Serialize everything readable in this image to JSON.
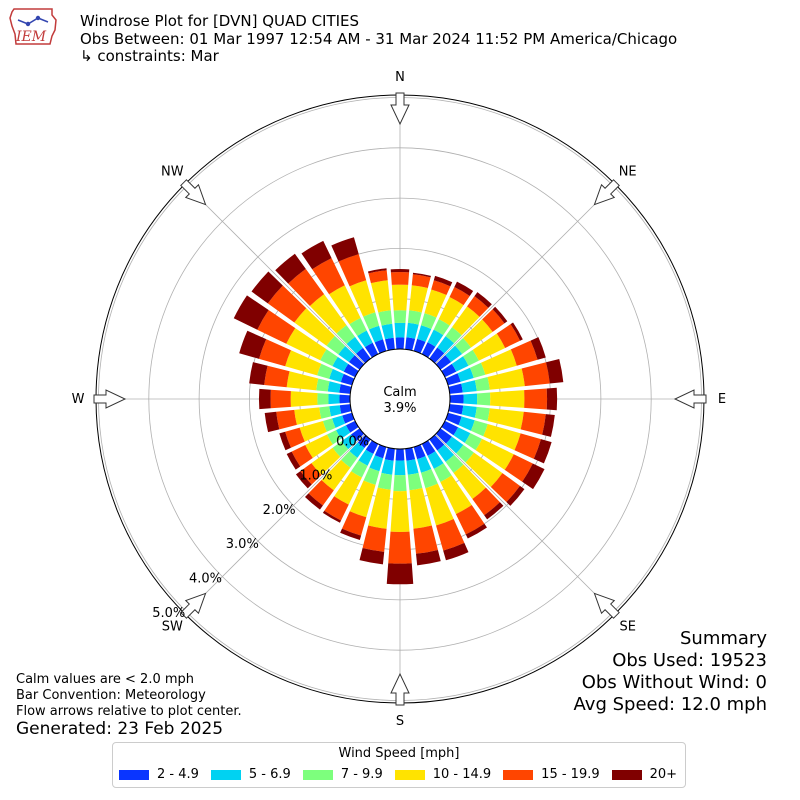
{
  "header": {
    "title": "Windrose Plot for [DVN] QUAD CITIES",
    "subtitle": "Obs Between: 01 Mar 1997 12:54 AM - 31 Mar 2024 11:52 PM America/Chicago",
    "constraints": "↳ constraints: Mar"
  },
  "logo": {
    "icon": "iem-iowa-logo-icon",
    "text": "IEM"
  },
  "notes": {
    "calm": "Calm values are < 2.0 mph",
    "convention": "Bar Convention: Meteorology",
    "arrows": "Flow arrows relative to plot center.",
    "generated": "Generated: 23 Feb 2025"
  },
  "summary": {
    "title": "Summary",
    "obs_used": "Obs Used: 19523",
    "obs_without_wind": "Obs Without Wind: 0",
    "avg_speed": "Avg Speed: 12.0 mph"
  },
  "chart_data": {
    "type": "windrose",
    "calm_label": "Calm",
    "calm_value": "3.9%",
    "directions": [
      "N",
      "NE",
      "E",
      "SE",
      "S",
      "SW",
      "W",
      "NW"
    ],
    "radial_ticks": [
      "0.0%",
      "1.0%",
      "2.0%",
      "3.0%",
      "4.0%",
      "5.0%"
    ],
    "radial_tick_values": [
      0,
      1,
      2,
      3,
      4,
      5
    ],
    "legend_title": "Wind Speed [mph]",
    "speed_bins": [
      "2 - 4.9",
      "5 - 6.9",
      "7 - 9.9",
      "10 - 14.9",
      "15 - 19.9",
      "20+"
    ],
    "colors": [
      "#0a35ff",
      "#00d2f2",
      "#7dff7d",
      "#ffe300",
      "#ff4500",
      "#800000"
    ],
    "sector_width_deg": 10,
    "sectors": [
      {
        "dir": 0,
        "cum": [
          0.23,
          0.52,
          0.77,
          1.28,
          1.53,
          1.59
        ]
      },
      {
        "dir": 10,
        "cum": [
          0.24,
          0.53,
          0.78,
          1.28,
          1.5,
          1.53
        ]
      },
      {
        "dir": 20,
        "cum": [
          0.25,
          0.53,
          0.78,
          1.27,
          1.46,
          1.55
        ]
      },
      {
        "dir": 30,
        "cum": [
          0.26,
          0.54,
          0.77,
          1.26,
          1.48,
          1.6
        ]
      },
      {
        "dir": 40,
        "cum": [
          0.27,
          0.55,
          0.77,
          1.28,
          1.53,
          1.63
        ]
      },
      {
        "dir": 50,
        "cum": [
          0.26,
          0.53,
          0.75,
          1.28,
          1.57,
          1.64
        ]
      },
      {
        "dir": 60,
        "cum": [
          0.25,
          0.52,
          0.75,
          1.33,
          1.66,
          1.72
        ]
      },
      {
        "dir": 70,
        "cum": [
          0.26,
          0.53,
          0.77,
          1.42,
          1.85,
          2.02
        ]
      },
      {
        "dir": 80,
        "cum": [
          0.26,
          0.54,
          0.8,
          1.5,
          2.0,
          2.27
        ]
      },
      {
        "dir": 90,
        "cum": [
          0.27,
          0.54,
          0.8,
          1.48,
          1.93,
          2.13
        ]
      },
      {
        "dir": 100,
        "cum": [
          0.27,
          0.54,
          0.8,
          1.48,
          1.92,
          2.1
        ]
      },
      {
        "dir": 110,
        "cum": [
          0.28,
          0.55,
          0.82,
          1.5,
          1.92,
          2.14
        ]
      },
      {
        "dir": 120,
        "cum": [
          0.29,
          0.56,
          0.82,
          1.52,
          1.94,
          2.2
        ]
      },
      {
        "dir": 130,
        "cum": [
          0.28,
          0.56,
          0.82,
          1.52,
          1.95,
          2.06
        ]
      },
      {
        "dir": 140,
        "cum": [
          0.27,
          0.55,
          0.82,
          1.46,
          1.86,
          1.96
        ]
      },
      {
        "dir": 150,
        "cum": [
          0.26,
          0.55,
          0.84,
          1.55,
          2.0,
          2.09
        ]
      },
      {
        "dir": 160,
        "cum": [
          0.25,
          0.53,
          0.85,
          1.62,
          2.14,
          2.34
        ]
      },
      {
        "dir": 170,
        "cum": [
          0.24,
          0.52,
          0.83,
          1.6,
          2.1,
          2.33
        ]
      },
      {
        "dir": 180,
        "cum": [
          0.23,
          0.52,
          0.84,
          1.65,
          2.28,
          2.69
        ]
      },
      {
        "dir": 190,
        "cum": [
          0.24,
          0.52,
          0.82,
          1.6,
          2.06,
          2.31
        ]
      },
      {
        "dir": 200,
        "cum": [
          0.23,
          0.5,
          0.78,
          1.45,
          1.83,
          1.92
        ]
      },
      {
        "dir": 210,
        "cum": [
          0.22,
          0.48,
          0.74,
          1.34,
          1.69,
          1.74
        ]
      },
      {
        "dir": 220,
        "cum": [
          0.21,
          0.45,
          0.69,
          1.25,
          1.62,
          1.72
        ]
      },
      {
        "dir": 230,
        "cum": [
          0.21,
          0.44,
          0.66,
          1.18,
          1.45,
          1.56
        ]
      },
      {
        "dir": 240,
        "cum": [
          0.2,
          0.42,
          0.62,
          1.1,
          1.4,
          1.51
        ]
      },
      {
        "dir": 250,
        "cum": [
          0.2,
          0.41,
          0.6,
          1.08,
          1.38,
          1.5
        ]
      },
      {
        "dir": 260,
        "cum": [
          0.21,
          0.42,
          0.62,
          1.12,
          1.48,
          1.71
        ]
      },
      {
        "dir": 270,
        "cum": [
          0.21,
          0.43,
          0.65,
          1.18,
          1.58,
          1.81
        ]
      },
      {
        "dir": 280,
        "cum": [
          0.22,
          0.45,
          0.68,
          1.27,
          1.72,
          2.02
        ]
      },
      {
        "dir": 290,
        "cum": [
          0.23,
          0.47,
          0.72,
          1.38,
          1.92,
          2.33
        ]
      },
      {
        "dir": 300,
        "cum": [
          0.25,
          0.5,
          0.77,
          1.52,
          2.16,
          2.68
        ]
      },
      {
        "dir": 310,
        "cum": [
          0.26,
          0.52,
          0.81,
          1.6,
          2.25,
          2.65
        ]
      },
      {
        "dir": 320,
        "cum": [
          0.26,
          0.53,
          0.82,
          1.58,
          2.2,
          2.57
        ]
      },
      {
        "dir": 330,
        "cum": [
          0.25,
          0.52,
          0.8,
          1.52,
          2.12,
          2.5
        ]
      },
      {
        "dir": 340,
        "cum": [
          0.24,
          0.52,
          0.8,
          1.46,
          2.0,
          2.35
        ]
      },
      {
        "dir": 350,
        "cum": [
          0.23,
          0.51,
          0.78,
          1.38,
          1.58,
          1.62
        ]
      }
    ]
  }
}
